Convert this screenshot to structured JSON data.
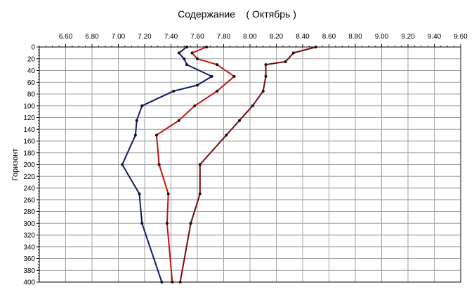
{
  "chart_data": {
    "type": "line",
    "title": "Содержание    ( Октябрь )",
    "xlabel": "",
    "ylabel": "Горизонт",
    "xlim": [
      6.4,
      9.6
    ],
    "ylim": [
      0,
      400
    ],
    "x_ticks": [
      "6.60",
      "6.80",
      "7.00",
      "7.20",
      "7.40",
      "7.60",
      "7.80",
      "8.00",
      "8.20",
      "8.40",
      "8.60",
      "8.80",
      "9.00",
      "9.20",
      "9.40",
      "9.60"
    ],
    "y_ticks": [
      "0",
      "20",
      "40",
      "60",
      "80",
      "100",
      "120",
      "140",
      "160",
      "180",
      "200",
      "220",
      "240",
      "260",
      "280",
      "300",
      "320",
      "340",
      "360",
      "380",
      "400"
    ],
    "y_inverted": true,
    "x_axis_position": "top",
    "grid": true,
    "legend": "none",
    "series": [
      {
        "color": "#0a1a6e",
        "points": [
          [
            7.52,
            0
          ],
          [
            7.46,
            10
          ],
          [
            7.5,
            20
          ],
          [
            7.52,
            30
          ],
          [
            7.71,
            50
          ],
          [
            7.6,
            65
          ],
          [
            7.42,
            75
          ],
          [
            7.18,
            100
          ],
          [
            7.14,
            125
          ],
          [
            7.13,
            150
          ],
          [
            7.03,
            200
          ],
          [
            7.16,
            250
          ],
          [
            7.18,
            300
          ],
          [
            7.33,
            400
          ]
        ]
      },
      {
        "color": "#cc1111",
        "points": [
          [
            7.67,
            0
          ],
          [
            7.56,
            10
          ],
          [
            7.6,
            20
          ],
          [
            7.75,
            30
          ],
          [
            7.88,
            50
          ],
          [
            7.75,
            75
          ],
          [
            7.58,
            100
          ],
          [
            7.46,
            125
          ],
          [
            7.29,
            150
          ],
          [
            7.31,
            200
          ],
          [
            7.38,
            250
          ],
          [
            7.37,
            300
          ],
          [
            7.41,
            400
          ]
        ]
      },
      {
        "color": "#7a0a0a",
        "points": [
          [
            8.5,
            0
          ],
          [
            8.33,
            10
          ],
          [
            8.27,
            25
          ],
          [
            8.12,
            30
          ],
          [
            8.12,
            50
          ],
          [
            8.1,
            75
          ],
          [
            8.02,
            100
          ],
          [
            7.92,
            125
          ],
          [
            7.82,
            150
          ],
          [
            7.62,
            200
          ],
          [
            7.62,
            250
          ],
          [
            7.55,
            300
          ],
          [
            7.47,
            400
          ]
        ]
      }
    ]
  }
}
